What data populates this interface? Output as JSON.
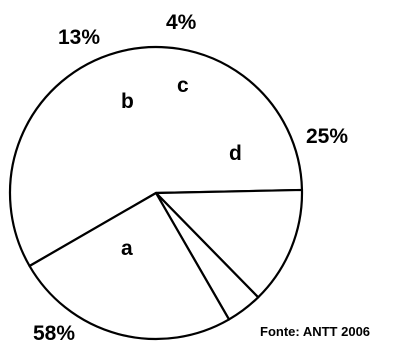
{
  "chart_data": {
    "type": "pie",
    "categories": [
      "a",
      "b",
      "c",
      "d"
    ],
    "values": [
      58,
      13,
      4,
      25
    ],
    "value_labels": [
      "58%",
      "13%",
      "4%",
      "25%"
    ],
    "colors": [
      "#ffffff",
      "#ffffff",
      "#ffffff",
      "#ffffff"
    ],
    "source": "Fonte: ANTT 2006",
    "legend": "none"
  }
}
